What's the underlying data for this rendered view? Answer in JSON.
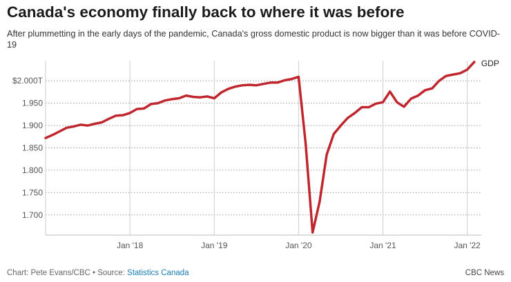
{
  "header": {
    "title": "Canada's economy finally back to where it was before",
    "subtitle": "After plummetting in the early days of the pandemic, Canada's gross domestic product is now bigger than it was before COVID-19"
  },
  "footer": {
    "credit": "Chart: Pete Evans/CBC • Source: ",
    "source_link": "Statistics Canada",
    "brand": "CBC News"
  },
  "chart_data": {
    "type": "line",
    "title": "Canada's economy finally back to where it was before",
    "xlabel": "",
    "ylabel": "",
    "x_ticks": [
      "Jan '18",
      "Jan '19",
      "Jan '20",
      "Jan '21",
      "Jan '22"
    ],
    "y_ticks": [
      "$2.000T",
      "1.950",
      "1.900",
      "1.850",
      "1.800",
      "1.750",
      "1.700"
    ],
    "ylim": [
      1.655,
      2.045
    ],
    "xlim": [
      "2017-01",
      "2022-03"
    ],
    "grid": {
      "horizontal": "dotted",
      "vertical": "solid"
    },
    "color": "#c0262e",
    "series": [
      {
        "name": "GDP",
        "x": [
          "2017-01",
          "2017-02",
          "2017-03",
          "2017-04",
          "2017-05",
          "2017-06",
          "2017-07",
          "2017-08",
          "2017-09",
          "2017-10",
          "2017-11",
          "2017-12",
          "2018-01",
          "2018-02",
          "2018-03",
          "2018-04",
          "2018-05",
          "2018-06",
          "2018-07",
          "2018-08",
          "2018-09",
          "2018-10",
          "2018-11",
          "2018-12",
          "2019-01",
          "2019-02",
          "2019-03",
          "2019-04",
          "2019-05",
          "2019-06",
          "2019-07",
          "2019-08",
          "2019-09",
          "2019-10",
          "2019-11",
          "2019-12",
          "2020-01",
          "2020-02",
          "2020-03",
          "2020-04",
          "2020-05",
          "2020-06",
          "2020-07",
          "2020-08",
          "2020-09",
          "2020-10",
          "2020-11",
          "2020-12",
          "2021-01",
          "2021-02",
          "2021-03",
          "2021-04",
          "2021-05",
          "2021-06",
          "2021-07",
          "2021-08",
          "2021-09",
          "2021-10",
          "2021-11",
          "2021-12",
          "2022-01",
          "2022-02"
        ],
        "values": [
          1.872,
          1.879,
          1.887,
          1.895,
          1.898,
          1.902,
          1.9,
          1.904,
          1.907,
          1.915,
          1.922,
          1.923,
          1.928,
          1.937,
          1.938,
          1.948,
          1.95,
          1.956,
          1.959,
          1.961,
          1.967,
          1.964,
          1.963,
          1.965,
          1.961,
          1.974,
          1.982,
          1.987,
          1.99,
          1.991,
          1.99,
          1.993,
          1.996,
          1.996,
          2.001,
          2.004,
          2.009,
          1.86,
          1.661,
          1.73,
          1.835,
          1.881,
          1.9,
          1.917,
          1.928,
          1.941,
          1.941,
          1.949,
          1.952,
          1.976,
          1.952,
          1.942,
          1.96,
          1.967,
          1.979,
          1.983,
          2.0,
          2.011,
          2.014,
          2.017,
          2.025,
          2.042
        ]
      }
    ]
  }
}
